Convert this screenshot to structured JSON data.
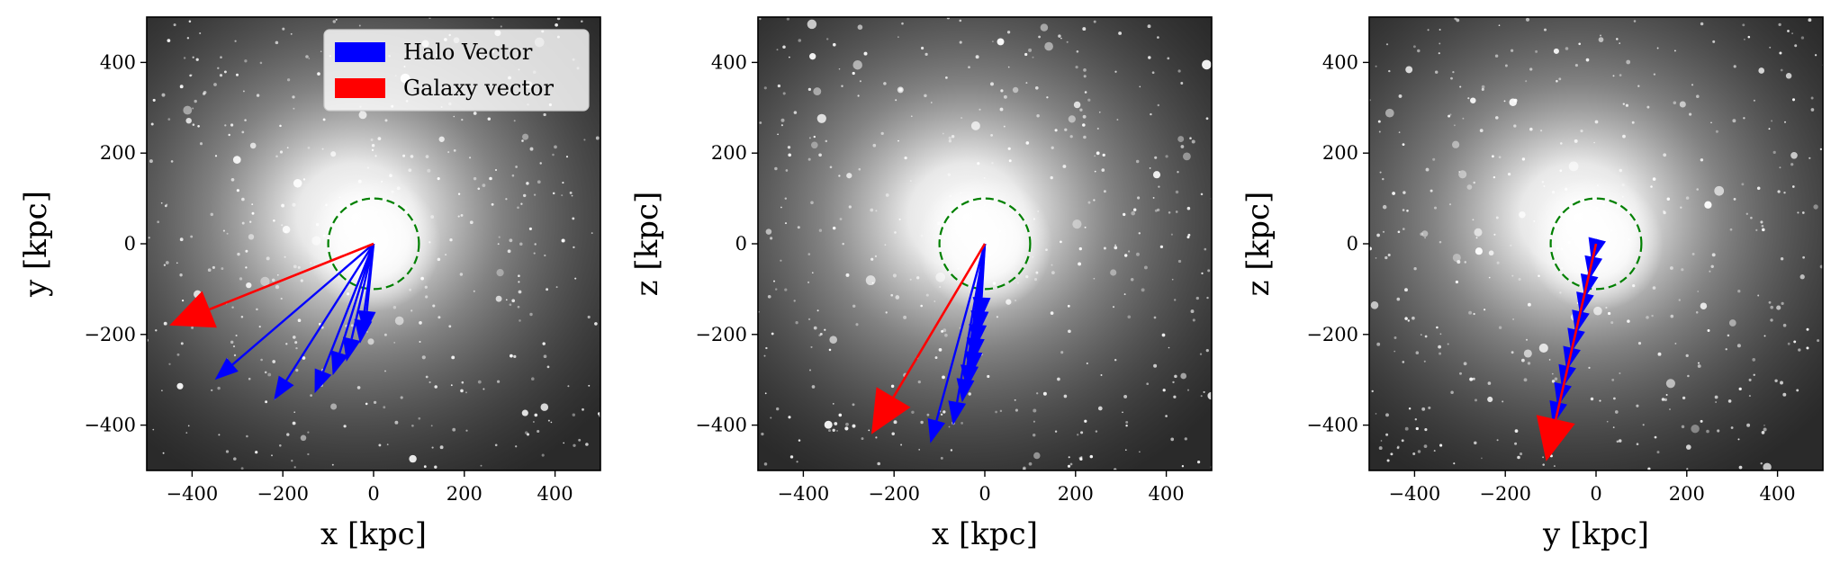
{
  "chart_data": [
    {
      "type": "scatter",
      "panel": "xy",
      "xlabel": "x [kpc]",
      "ylabel": "y [kpc]",
      "xlim": [
        -500,
        500
      ],
      "ylim": [
        -500,
        500
      ],
      "xticks": [
        -400,
        -200,
        0,
        200,
        400
      ],
      "yticks": [
        -400,
        -200,
        0,
        200,
        400
      ],
      "tick_labels": [
        "−400",
        "−200",
        "0",
        "200",
        "400"
      ],
      "circle": {
        "center": [
          0,
          0
        ],
        "radius": 100,
        "color": "#008000",
        "style": "dashed"
      },
      "legend": {
        "placement": "top-right",
        "entries": [
          {
            "label": "Halo Vector",
            "color": "#0000ff"
          },
          {
            "label": "Galaxy vector",
            "color": "#ff0000"
          }
        ]
      },
      "halo_vectors": [
        [
          -350,
          -300
        ],
        [
          -220,
          -345
        ],
        [
          -130,
          -330
        ],
        [
          -90,
          -290
        ],
        [
          -60,
          -260
        ],
        [
          -30,
          -220
        ],
        [
          -20,
          -200
        ]
      ],
      "galaxy_vector": [
        -450,
        -180
      ]
    },
    {
      "type": "scatter",
      "panel": "xz",
      "xlabel": "x [kpc]",
      "ylabel": "z [kpc]",
      "xlim": [
        -500,
        500
      ],
      "ylim": [
        -500,
        500
      ],
      "xticks": [
        -400,
        -200,
        0,
        200,
        400
      ],
      "yticks": [
        -400,
        -200,
        0,
        200,
        400
      ],
      "tick_labels": [
        "−400",
        "−200",
        "0",
        "200",
        "400"
      ],
      "circle": {
        "center": [
          0,
          0
        ],
        "radius": 100,
        "color": "#008000",
        "style": "dashed"
      },
      "halo_vectors": [
        [
          -120,
          -440
        ],
        [
          -70,
          -400
        ],
        [
          -50,
          -350
        ],
        [
          -40,
          -320
        ],
        [
          -30,
          -290
        ],
        [
          -25,
          -260
        ],
        [
          -20,
          -230
        ],
        [
          -15,
          -200
        ],
        [
          -10,
          -170
        ]
      ],
      "galaxy_vector": [
        -250,
        -420
      ]
    },
    {
      "type": "scatter",
      "panel": "yz",
      "xlabel": "y [kpc]",
      "ylabel": "z [kpc]",
      "xlim": [
        -500,
        500
      ],
      "ylim": [
        -500,
        500
      ],
      "xticks": [
        -400,
        -200,
        0,
        200,
        400
      ],
      "yticks": [
        -400,
        -200,
        0,
        200,
        400
      ],
      "tick_labels": [
        "−400",
        "−200",
        "0",
        "200",
        "400"
      ],
      "circle": {
        "center": [
          0,
          0
        ],
        "radius": 100,
        "color": "#008000",
        "style": "dashed"
      },
      "halo_vectors": [
        [
          -95,
          -400
        ],
        [
          -85,
          -360
        ],
        [
          -75,
          -320
        ],
        [
          -65,
          -280
        ],
        [
          -55,
          -240
        ],
        [
          -45,
          -200
        ],
        [
          -35,
          -160
        ],
        [
          -25,
          -120
        ],
        [
          -15,
          -80
        ],
        [
          -10,
          -40
        ]
      ],
      "galaxy_vector": [
        -110,
        -480
      ]
    }
  ]
}
